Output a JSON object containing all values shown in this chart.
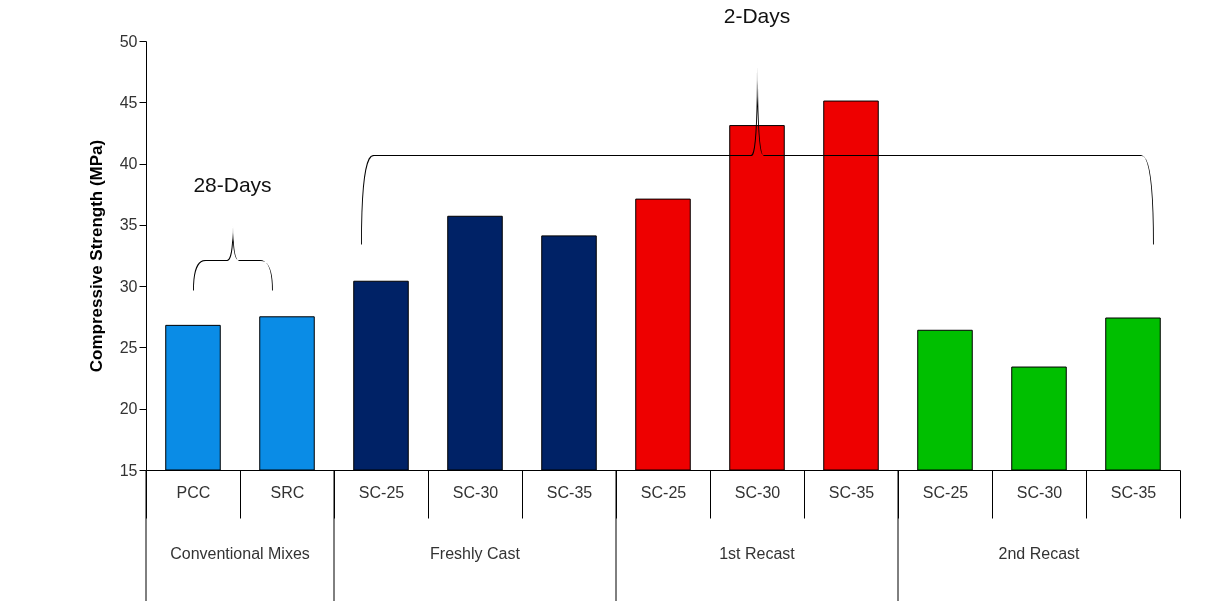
{
  "chart_data": {
    "type": "bar",
    "ylabel": "Compressive Strength (MPa)",
    "categories": [
      "PCC",
      "SRC",
      "SC-25",
      "SC-30",
      "SC-35",
      "SC-25",
      "SC-30",
      "SC-35",
      "SC-25",
      "SC-30",
      "SC-35"
    ],
    "series": [
      {
        "color": "#0a8ce6",
        "values": [
          26.8,
          27.5,
          null,
          null,
          null,
          null,
          null,
          null,
          null,
          null,
          null
        ]
      },
      {
        "color": "#002266",
        "values": [
          null,
          null,
          30.4,
          35.7,
          34.1,
          null,
          null,
          null,
          null,
          null,
          null
        ]
      },
      {
        "color": "#ee0000",
        "values": [
          null,
          null,
          null,
          null,
          null,
          37.1,
          43.1,
          45.1,
          null,
          null,
          null
        ]
      },
      {
        "color": "#00bf00",
        "values": [
          null,
          null,
          null,
          null,
          null,
          null,
          null,
          null,
          26.4,
          23.4,
          27.4
        ]
      }
    ],
    "ylim": [
      15,
      50
    ],
    "yticks": [
      15,
      20,
      25,
      30,
      35,
      40,
      45,
      50
    ],
    "grid": false,
    "legend": false,
    "annotations": [
      "Conventional Mixes",
      "Freshly Cast",
      "1st Recast",
      "2nd Recast",
      "28-Days",
      "2-Days"
    ]
  }
}
